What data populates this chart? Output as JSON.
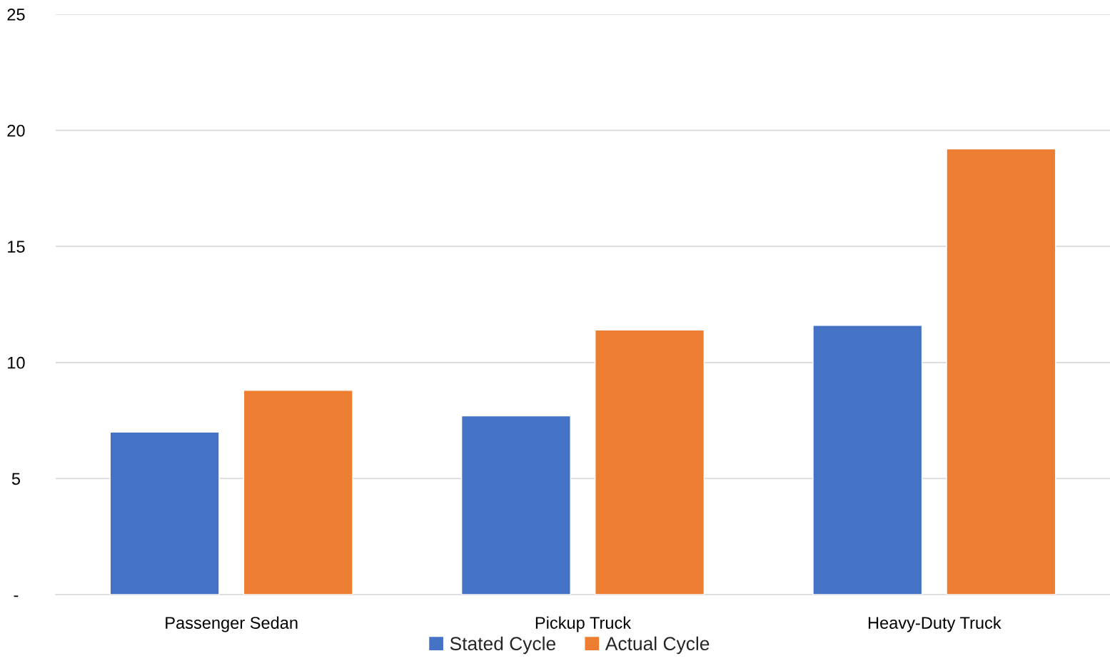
{
  "chart_data": {
    "type": "bar",
    "categories": [
      "Passenger Sedan",
      "Pickup Truck",
      "Heavy-Duty Truck"
    ],
    "series": [
      {
        "name": "Stated Cycle",
        "color": "#4472c4",
        "values": [
          7.0,
          7.7,
          11.6
        ]
      },
      {
        "name": "Actual Cycle",
        "color": "#ed7d31",
        "values": [
          8.8,
          11.4,
          19.2
        ]
      }
    ],
    "ylim": [
      0,
      25
    ],
    "yticks": [
      {
        "value": 0,
        "label": "-"
      },
      5,
      10,
      15,
      20,
      25
    ],
    "grid": "y",
    "legend": "bottom"
  }
}
